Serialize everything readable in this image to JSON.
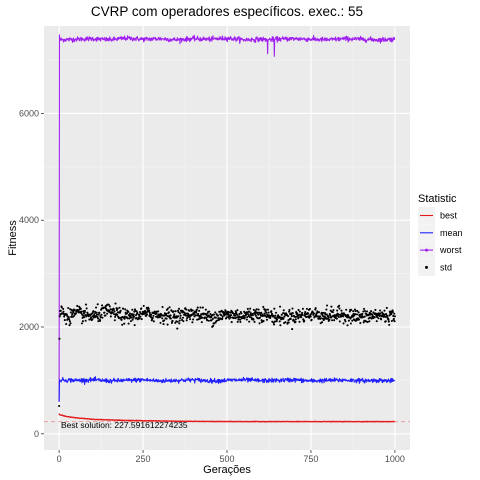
{
  "chart_data": {
    "type": "line",
    "title": "CVRP com operadores específicos. exec.: 55",
    "xlabel": "Gerações",
    "ylabel": "Fitness",
    "xlim": [
      0,
      1000
    ],
    "ylim": [
      0,
      7600
    ],
    "x_ticks": [
      0,
      250,
      500,
      750,
      1000
    ],
    "y_ticks": [
      0,
      2000,
      4000,
      6000
    ],
    "grid": true,
    "legend": {
      "title": "Statistic",
      "placement": "right",
      "entries": [
        {
          "name": "best",
          "color": "#e41a1c",
          "shape": "line"
        },
        {
          "name": "mean",
          "color": "#1f1fff",
          "shape": "line"
        },
        {
          "name": "worst",
          "color": "#a020f0",
          "shape": "line-point"
        },
        {
          "name": "std",
          "color": "#000000",
          "shape": "point"
        }
      ]
    },
    "series": [
      {
        "name": "worst",
        "color": "#a020f0",
        "x": [
          0,
          1,
          2,
          50,
          100,
          150,
          200,
          250,
          300,
          350,
          400,
          450,
          500,
          550,
          600,
          620,
          621,
          622,
          640,
          641,
          642,
          700,
          750,
          800,
          850,
          900,
          950,
          1000
        ],
        "y": [
          600,
          7470,
          7380,
          7390,
          7400,
          7380,
          7410,
          7390,
          7400,
          7380,
          7400,
          7390,
          7410,
          7380,
          7390,
          7380,
          7120,
          7380,
          7390,
          7070,
          7390,
          7400,
          7390,
          7380,
          7400,
          7390,
          7380,
          7390
        ]
      },
      {
        "name": "mean",
        "color": "#1f1fff",
        "x": [
          0,
          1,
          2,
          50,
          100,
          150,
          200,
          250,
          300,
          350,
          400,
          450,
          500,
          550,
          600,
          650,
          700,
          750,
          800,
          850,
          900,
          950,
          1000
        ],
        "y": [
          600,
          980,
          1010,
          1000,
          1010,
          990,
          1000,
          1010,
          990,
          1000,
          1010,
          990,
          1000,
          1010,
          995,
          1000,
          1010,
          990,
          1000,
          1005,
          995,
          1000,
          990
        ]
      },
      {
        "name": "best",
        "color": "#e41a1c",
        "x": [
          0,
          1,
          5,
          25,
          50,
          100,
          150,
          200,
          250,
          300,
          350,
          400,
          450,
          500,
          600,
          700,
          800,
          900,
          1000
        ],
        "y": [
          380,
          360,
          350,
          320,
          300,
          270,
          260,
          250,
          245,
          240,
          235,
          232,
          230,
          229,
          228,
          228,
          228,
          228,
          228
        ]
      },
      {
        "name": "std",
        "color": "#000000",
        "x": [
          0,
          1,
          2,
          3,
          25,
          50,
          100,
          150,
          200,
          250,
          300,
          350,
          400,
          450,
          500,
          550,
          600,
          650,
          700,
          750,
          800,
          850,
          900,
          950,
          1000
        ],
        "y": [
          520,
          1780,
          2200,
          2300,
          2200,
          2250,
          2200,
          2300,
          2180,
          2250,
          2230,
          2200,
          2260,
          2180,
          2230,
          2210,
          2250,
          2180,
          2200,
          2240,
          2210,
          2230,
          2180,
          2220,
          2200
        ]
      }
    ],
    "reference_line": {
      "y": 227.591612274235,
      "color": "#e41a1c",
      "style": "dashed"
    },
    "annotation": {
      "text": "Best solution: 227.591612274235",
      "x": 0,
      "y": 227.59
    }
  }
}
